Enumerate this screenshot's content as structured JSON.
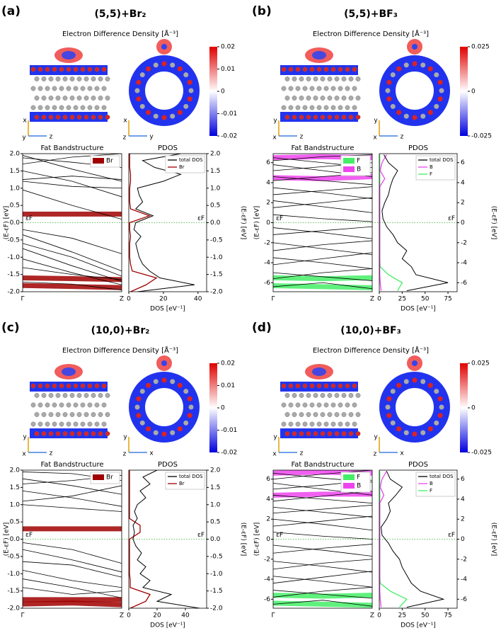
{
  "panels": [
    {
      "label": "(a)",
      "title": "(5,5)+Br₂",
      "density_label": "Electron Difference Density [Å⁻³]",
      "colorbar": {
        "lim": [
          -0.02,
          0.02
        ],
        "ticks": [
          0.02,
          0.01,
          0,
          -0.01,
          -0.02
        ]
      },
      "triads": [
        {
          "up": "x",
          "left": "y",
          "right": "z"
        },
        {
          "up": "x",
          "left": "z",
          "right": "y"
        }
      ],
      "band_chart": {
        "type": "line",
        "title": "Fat Bandstructure",
        "categories": [
          "Γ",
          null,
          "Z"
        ],
        "ylim": [
          -2,
          2
        ],
        "yticks": [
          {
            "value": -2,
            "label": "-2.0"
          },
          -1.5,
          {
            "value": -1,
            "label": "-1.0"
          },
          -0.5,
          {
            "value": 0,
            "label": "0.0"
          },
          0.5,
          {
            "value": 1,
            "label": "1.0"
          },
          1.5,
          {
            "value": 2,
            "label": "2.0"
          }
        ],
        "ylabel": "(E-εF) [eV]",
        "fermi_label": "εF",
        "band_color": "#000000",
        "bands": [
          [
            1.95,
            1.55,
            1.2
          ],
          [
            1.88,
            1.75,
            1.6
          ],
          [
            1.7,
            1.9,
            2.0
          ],
          [
            1.5,
            1.2,
            0.75
          ],
          [
            1.25,
            1.35,
            1.25
          ],
          [
            1.2,
            1.05,
            1.0
          ],
          [
            0.95,
            0.5,
            0.1
          ],
          [
            -0.2,
            -0.45,
            -0.9
          ],
          [
            -0.35,
            -0.85,
            -1.4
          ],
          [
            -0.6,
            -1.0,
            -1.55
          ],
          [
            -0.75,
            -1.25,
            -1.7
          ],
          [
            -1.05,
            -1.45,
            -1.8
          ],
          [
            -1.3,
            -1.5,
            -1.65
          ],
          [
            -1.72,
            -1.78,
            -1.95
          ]
        ],
        "fat_series": [
          {
            "name": "Br",
            "color": "#a00000",
            "bands": [
              [
                0.25,
                0.25,
                0.25
              ],
              [
                -1.6,
                -1.62,
                -1.65
              ],
              [
                -1.82,
                -1.85,
                -1.88
              ]
            ]
          }
        ]
      },
      "pdos_chart": {
        "type": "line",
        "title": "PDOS",
        "xlabel": "DOS [eV⁻¹]",
        "xlim": [
          0,
          45
        ],
        "xticks": [
          0,
          20,
          40
        ],
        "energies": [
          -2,
          -1.8,
          -1.6,
          -1.4,
          -1.2,
          -1,
          -0.8,
          -0.6,
          -0.4,
          -0.2,
          0,
          0.2,
          0.4,
          0.6,
          0.8,
          1,
          1.2,
          1.4,
          1.6,
          1.8,
          2
        ],
        "series": [
          {
            "name": "total DOS",
            "color": "#000000",
            "values": [
              5,
              38,
              18,
              12,
              8,
              6,
              5,
              4,
              7,
              3,
              4,
              14,
              4,
              8,
              6,
              5,
              20,
              30,
              15,
              8,
              30
            ]
          },
          {
            "name": "Br",
            "color": "#a00000",
            "values": [
              1,
              10,
              16,
              2,
              1,
              0.5,
              0.5,
              0.5,
              1,
              0.5,
              0.5,
              12,
              1,
              0.5,
              0.5,
              0.5,
              1,
              1,
              0.5,
              0.5,
              0.5
            ]
          }
        ]
      }
    },
    {
      "label": "(b)",
      "title": "(5,5)+BF₃",
      "density_label": "Electron Difference Density [Å⁻³]",
      "colorbar": {
        "lim": [
          -0.025,
          0.025
        ],
        "ticks": [
          0.025,
          0,
          -0.025
        ]
      },
      "triads": [
        {
          "up": "y",
          "left": "x",
          "right": "z"
        },
        {
          "up": "y",
          "left": "x",
          "right": "z"
        }
      ],
      "band_chart": {
        "type": "line",
        "title": "Fat Bandstructure",
        "categories": [
          "Γ",
          null,
          "Z"
        ],
        "ylim": [
          -6.9,
          6.9
        ],
        "yticks": [
          -6,
          -4,
          -2,
          0,
          2,
          4,
          6
        ],
        "ylabel": "(E-εF) [eV]",
        "fermi_label": "εF",
        "band_color": "#000000",
        "bands": [
          [
            6.5,
            6.0,
            5.5
          ],
          [
            6.2,
            6.6,
            6.8
          ],
          [
            5.8,
            5.2,
            4.6
          ],
          [
            5.2,
            5.6,
            6.0
          ],
          [
            4.6,
            4.2,
            3.8
          ],
          [
            4.2,
            4.6,
            5.0
          ],
          [
            3.5,
            3.0,
            2.4
          ],
          [
            2.8,
            3.2,
            3.6
          ],
          [
            2.2,
            1.6,
            1.0
          ],
          [
            1.5,
            2.0,
            2.5
          ],
          [
            0.8,
            0.4,
            0.1
          ],
          [
            -0.5,
            -1.0,
            -1.6
          ],
          [
            -1.2,
            -0.8,
            -0.4
          ],
          [
            -2.0,
            -2.6,
            -3.2
          ],
          [
            -2.8,
            -2.2,
            -1.8
          ],
          [
            -3.5,
            -4.0,
            -4.6
          ],
          [
            -4.2,
            -3.6,
            -3.0
          ],
          [
            -5.0,
            -5.4,
            -5.8
          ],
          [
            -5.6,
            -5.0,
            -4.6
          ],
          [
            -6.4,
            -6.0,
            -6.6
          ]
        ],
        "fat_series": [
          {
            "name": "F",
            "color": "#44ee66",
            "bands": [
              [
                -5.5,
                -5.6,
                -5.5
              ],
              [
                -6.3,
                -6.4,
                -6.5
              ]
            ]
          },
          {
            "name": "B",
            "color": "#ee44ee",
            "bands": [
              [
                4.5,
                4.4,
                4.6
              ],
              [
                6.5,
                6.6,
                6.5
              ]
            ]
          }
        ]
      },
      "pdos_chart": {
        "type": "line",
        "title": "PDOS",
        "xlabel": "DOS [eV⁻¹]",
        "xlim": [
          0,
          85
        ],
        "xticks": [
          0,
          25,
          50,
          75
        ],
        "energies": [
          -6.8,
          -6,
          -5.2,
          -4.4,
          -3.6,
          -2.8,
          -2,
          -1.2,
          -0.4,
          0.4,
          1.2,
          2,
          2.8,
          3.6,
          4.4,
          5.2,
          6,
          6.8
        ],
        "series": [
          {
            "name": "total DOS",
            "color": "#000000",
            "values": [
              30,
              75,
              40,
              35,
              25,
              30,
              20,
              15,
              8,
              4,
              3,
              6,
              10,
              12,
              15,
              20,
              10,
              5
            ]
          },
          {
            "name": "B",
            "color": "#ee44ee",
            "values": [
              2,
              1,
              0.5,
              0.5,
              0.5,
              0.5,
              0.5,
              0.5,
              0.5,
              0.5,
              0.5,
              0.5,
              0.5,
              0.5,
              6,
              1,
              3,
              8
            ]
          },
          {
            "name": "F",
            "color": "#44ee66",
            "values": [
              20,
              25,
              10,
              1,
              0.5,
              0.5,
              0.5,
              0.5,
              0.5,
              0.5,
              0.5,
              0.5,
              0.5,
              0.5,
              0.5,
              0.5,
              0.5,
              0.5
            ]
          }
        ]
      }
    },
    {
      "label": "(c)",
      "title": "(10,0)+Br₂",
      "density_label": "Electron Difference Density [Å⁻³]",
      "colorbar": {
        "lim": [
          -0.02,
          0.02
        ],
        "ticks": [
          0.02,
          0.01,
          0,
          -0.01,
          -0.02
        ]
      },
      "triads": [
        {
          "up": "y",
          "left": "x",
          "right": "z"
        },
        {
          "up": "y",
          "left": "z",
          "right": "x"
        }
      ],
      "band_chart": {
        "type": "line",
        "title": "Fat Bandstructure",
        "categories": [
          "Γ",
          null,
          "Z"
        ],
        "ylim": [
          -2,
          2
        ],
        "yticks": [
          {
            "value": -2,
            "label": "-2.0"
          },
          -1.5,
          {
            "value": -1,
            "label": "-1.0"
          },
          -0.5,
          {
            "value": 0,
            "label": "0.0"
          },
          0.5,
          {
            "value": 1,
            "label": "1.0"
          },
          1.5,
          {
            "value": 2,
            "label": "2.0"
          }
        ],
        "ylabel": "(E-εF) [eV]",
        "fermi_label": "εF",
        "band_color": "#000000",
        "bands": [
          [
            1.95,
            1.9,
            1.7
          ],
          [
            1.75,
            1.55,
            1.3
          ],
          [
            1.6,
            1.7,
            1.85
          ],
          [
            1.4,
            1.2,
            0.95
          ],
          [
            1.1,
            1.25,
            1.55
          ],
          [
            1.0,
            0.9,
            0.8
          ],
          [
            -0.1,
            -0.3,
            -0.7
          ],
          [
            -0.3,
            -0.6,
            -0.95
          ],
          [
            -0.65,
            -0.75,
            -1.1
          ],
          [
            -0.9,
            -1.2,
            -1.4
          ],
          [
            -1.15,
            -1.4,
            -1.7
          ],
          [
            -1.4,
            -1.6,
            -1.5
          ]
        ],
        "fat_series": [
          {
            "name": "Br",
            "color": "#a00000",
            "bands": [
              [
                0.3,
                0.3,
                0.3
              ],
              [
                -1.75,
                -1.75,
                -1.75
              ],
              [
                -1.88,
                -1.85,
                -1.9
              ]
            ]
          }
        ]
      },
      "pdos_chart": {
        "type": "line",
        "title": "PDOS",
        "xlabel": "DOS [eV⁻¹]",
        "xlim": [
          0,
          55
        ],
        "xticks": [
          0,
          20,
          40
        ],
        "energies": [
          -2,
          -1.8,
          -1.6,
          -1.4,
          -1.2,
          -1,
          -0.8,
          -0.6,
          -0.4,
          -0.2,
          0,
          0.2,
          0.4,
          0.6,
          0.8,
          1,
          1.2,
          1.4,
          1.6,
          1.8,
          2
        ],
        "series": [
          {
            "name": "total DOS",
            "color": "#000000",
            "values": [
              50,
              20,
              30,
              10,
              15,
              8,
              12,
              6,
              9,
              5,
              3,
              4,
              3,
              6,
              4,
              6,
              12,
              8,
              15,
              10,
              20
            ]
          },
          {
            "name": "Br",
            "color": "#a00000",
            "values": [
              1,
              12,
              15,
              1,
              1,
              0.5,
              0.5,
              0.5,
              0.5,
              0.5,
              0.5,
              8,
              8,
              0.5,
              0.5,
              0.5,
              0.5,
              0.5,
              0.5,
              0.5,
              0.5
            ]
          }
        ]
      }
    },
    {
      "label": "(d)",
      "title": "(10,0)+BF₃",
      "density_label": "Electron Difference Density [Å⁻³]",
      "colorbar": {
        "lim": [
          -0.025,
          0.025
        ],
        "ticks": [
          0.025,
          0,
          -0.025
        ]
      },
      "triads": [
        {
          "up": "y",
          "left": "x",
          "right": "z"
        },
        {
          "up": "y",
          "left": "z",
          "right": "x"
        }
      ],
      "band_chart": {
        "type": "line",
        "title": "Fat Bandstructure",
        "categories": [
          "Γ",
          null,
          "Z"
        ],
        "ylim": [
          -6.9,
          6.9
        ],
        "yticks": [
          -6,
          -4,
          -2,
          0,
          2,
          4,
          6
        ],
        "ylabel": "(E-εF) [eV]",
        "fermi_label": "εF",
        "band_color": "#000000",
        "bands": [
          [
            6.6,
            6.1,
            5.7
          ],
          [
            6.0,
            6.5,
            6.9
          ],
          [
            5.6,
            5.0,
            4.4
          ],
          [
            5.0,
            5.4,
            5.9
          ],
          [
            4.4,
            4.0,
            3.6
          ],
          [
            3.8,
            4.3,
            4.8
          ],
          [
            3.2,
            2.7,
            2.2
          ],
          [
            2.6,
            3.0,
            3.4
          ],
          [
            2.0,
            1.5,
            0.9
          ],
          [
            1.3,
            1.8,
            2.3
          ],
          [
            0.7,
            0.3,
            0.0
          ],
          [
            -0.6,
            -1.1,
            -1.7
          ],
          [
            -1.4,
            -0.9,
            -0.5
          ],
          [
            -2.2,
            -2.7,
            -3.3
          ],
          [
            -3.0,
            -2.4,
            -2.0
          ],
          [
            -3.7,
            -4.2,
            -4.8
          ],
          [
            -4.4,
            -3.8,
            -3.2
          ],
          [
            -5.1,
            -5.5,
            -5.9
          ],
          [
            -5.8,
            -5.2,
            -4.8
          ],
          [
            -6.5,
            -6.1,
            -6.7
          ]
        ],
        "fat_series": [
          {
            "name": "F",
            "color": "#44ee66",
            "bands": [
              [
                -5.6,
                -5.7,
                -5.6
              ],
              [
                -6.4,
                -6.5,
                -6.6
              ]
            ]
          },
          {
            "name": "B",
            "color": "#ee44ee",
            "bands": [
              [
                4.4,
                4.5,
                4.5
              ],
              [
                6.6,
                6.7,
                6.6
              ]
            ]
          }
        ]
      },
      "pdos_chart": {
        "type": "line",
        "title": "PDOS",
        "xlabel": "DOS [eV⁻¹]",
        "xlim": [
          0,
          85
        ],
        "xticks": [
          0,
          25,
          50,
          75
        ],
        "energies": [
          -6.8,
          -6,
          -5.2,
          -4.4,
          -3.6,
          -2.8,
          -2,
          -1.2,
          -0.4,
          0.4,
          1.2,
          2,
          2.8,
          3.6,
          4.4,
          5.2,
          6,
          6.8
        ],
        "series": [
          {
            "name": "total DOS",
            "color": "#000000",
            "values": [
              30,
              70,
              45,
              35,
              30,
              25,
              22,
              15,
              10,
              3,
              2,
              8,
              12,
              10,
              18,
              25,
              12,
              8
            ]
          },
          {
            "name": "B",
            "color": "#ee44ee",
            "values": [
              2,
              1,
              0.5,
              0.5,
              0.5,
              0.5,
              0.5,
              0.5,
              0.5,
              0.5,
              0.5,
              0.5,
              0.5,
              0.5,
              5,
              1,
              3,
              8
            ]
          },
          {
            "name": "F",
            "color": "#44ee66",
            "values": [
              22,
              30,
              12,
              1,
              0.5,
              0.5,
              0.5,
              0.5,
              0.5,
              0.5,
              0.5,
              0.5,
              0.5,
              0.5,
              0.5,
              0.5,
              0.5,
              0.5
            ]
          }
        ]
      }
    }
  ]
}
